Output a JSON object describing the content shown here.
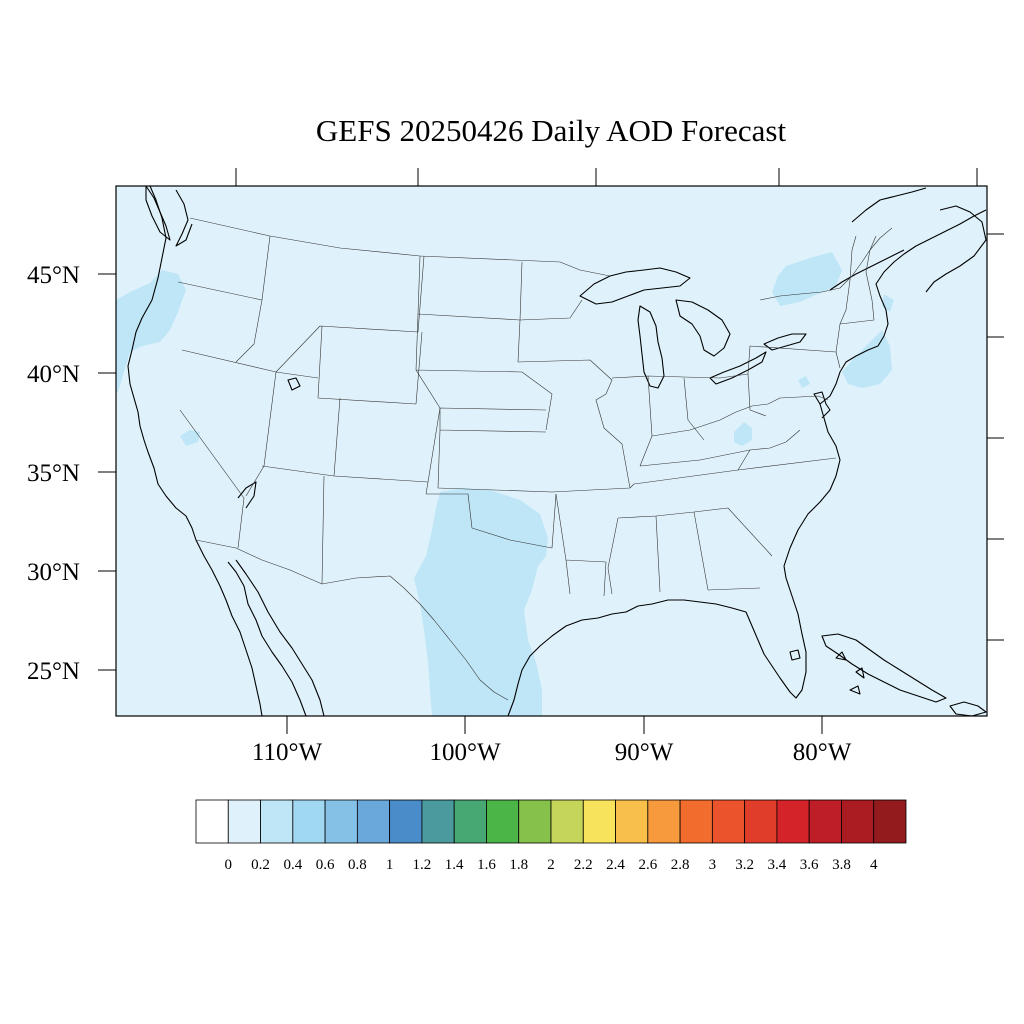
{
  "title": "GEFS 20250426 Daily AOD Forecast",
  "lat_labels": [
    "45°N",
    "40°N",
    "35°N",
    "30°N",
    "25°N"
  ],
  "lon_labels": [
    "110°W",
    "100°W",
    "90°W",
    "80°W"
  ],
  "background_aod_color": "#dff2fb",
  "colorbar": {
    "labels": [
      "0",
      "0.2",
      "0.4",
      "0.6",
      "0.8",
      "1",
      "1.2",
      "1.4",
      "1.6",
      "1.8",
      "2",
      "2.2",
      "2.4",
      "2.6",
      "2.8",
      "3",
      "3.2",
      "3.4",
      "3.6",
      "3.8",
      "4"
    ],
    "colors": [
      "#ffffff",
      "#dff2fb",
      "#bee6f7",
      "#a0d8f2",
      "#85c1e6",
      "#6aa8dc",
      "#4a8bc9",
      "#4a9a9e",
      "#47a874",
      "#4cb548",
      "#86c24a",
      "#c4d55a",
      "#f8e45c",
      "#f8bf4a",
      "#f69a3d",
      "#f26c2e",
      "#ea532b",
      "#e03d2a",
      "#d42329",
      "#be1e25",
      "#ab1c22",
      "#931a1d"
    ]
  },
  "aod_regions": [
    {
      "name": "pacific-northwest-plume",
      "aod_range": "0.2-0.4"
    },
    {
      "name": "texas-plume",
      "aod_range": "0.2-0.4"
    },
    {
      "name": "northeast-plume",
      "aod_range": "0.2-0.4"
    }
  ]
}
